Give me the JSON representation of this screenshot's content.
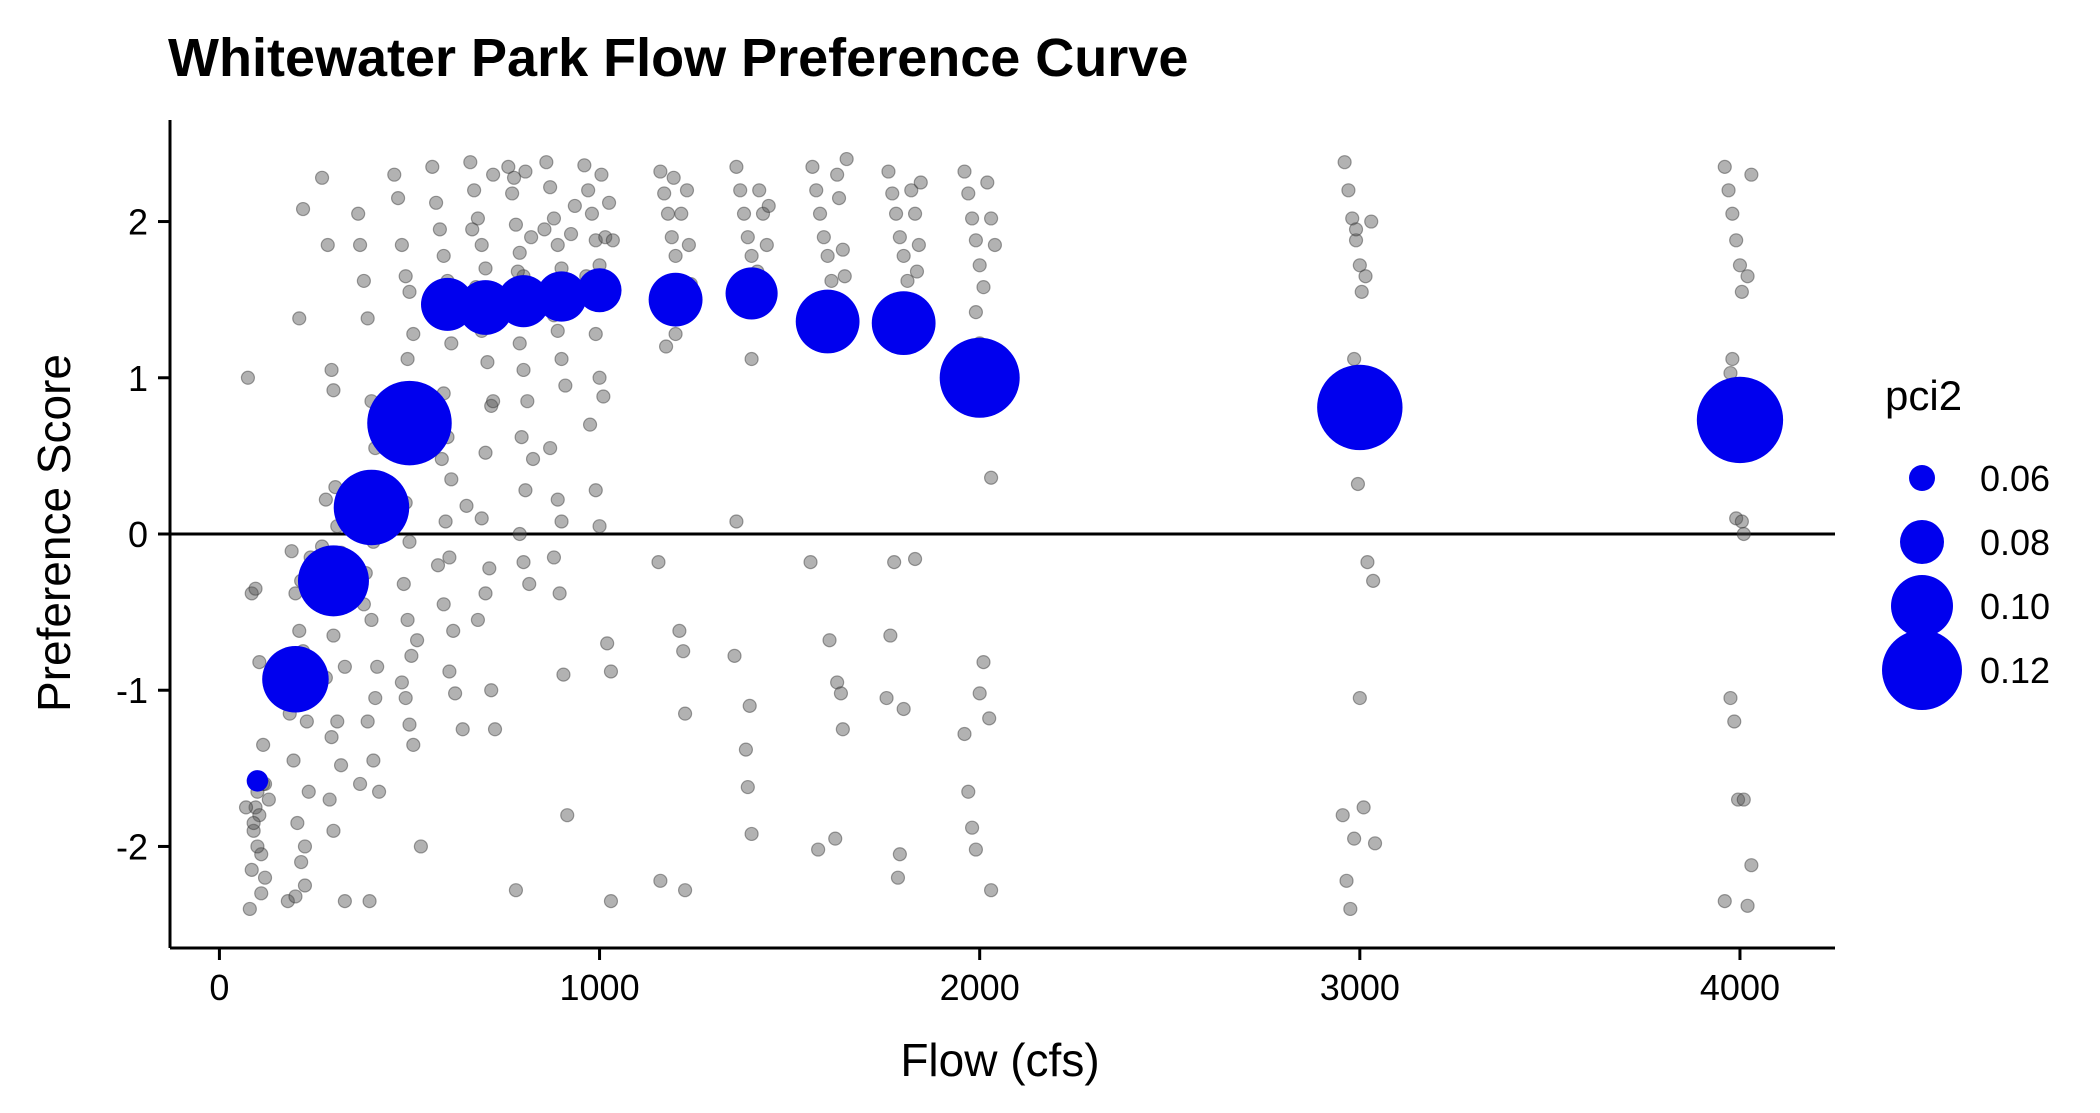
{
  "chart_data": {
    "type": "scatter",
    "title": "Whitewater Park Flow Preference Curve",
    "xlabel": "Flow (cfs)",
    "ylabel": "Preference Score",
    "xlim": [
      -130,
      4250
    ],
    "ylim": [
      -2.65,
      2.65
    ],
    "xticks": [
      0,
      1000,
      2000,
      3000,
      4000
    ],
    "yticks": [
      -2,
      -1,
      0,
      1,
      2
    ],
    "hline": 0,
    "grid": false,
    "colors": {
      "raw": "#555555",
      "mean": "#0000ee",
      "axis": "#000000"
    },
    "legend": {
      "title": "pci2",
      "placement": "right",
      "entries": [
        {
          "label": "0.06",
          "value": 0.06
        },
        {
          "label": "0.08",
          "value": 0.08
        },
        {
          "label": "0.10",
          "value": 0.1
        },
        {
          "label": "0.12",
          "value": 0.12
        }
      ]
    },
    "mean_points": [
      {
        "x": 100,
        "y": -1.58,
        "pci2": 0.055
      },
      {
        "x": 200,
        "y": -0.93,
        "pci2": 0.105
      },
      {
        "x": 300,
        "y": -0.3,
        "pci2": 0.11
      },
      {
        "x": 400,
        "y": 0.17,
        "pci2": 0.115
      },
      {
        "x": 500,
        "y": 0.71,
        "pci2": 0.125
      },
      {
        "x": 600,
        "y": 1.47,
        "pci2": 0.09
      },
      {
        "x": 700,
        "y": 1.45,
        "pci2": 0.092
      },
      {
        "x": 800,
        "y": 1.49,
        "pci2": 0.089
      },
      {
        "x": 900,
        "y": 1.52,
        "pci2": 0.087
      },
      {
        "x": 1000,
        "y": 1.56,
        "pci2": 0.08
      },
      {
        "x": 1200,
        "y": 1.5,
        "pci2": 0.091
      },
      {
        "x": 1400,
        "y": 1.54,
        "pci2": 0.089
      },
      {
        "x": 1600,
        "y": 1.36,
        "pci2": 0.102
      },
      {
        "x": 1800,
        "y": 1.35,
        "pci2": 0.102
      },
      {
        "x": 2000,
        "y": 1.0,
        "pci2": 0.12
      },
      {
        "x": 3000,
        "y": 0.81,
        "pci2": 0.126
      },
      {
        "x": 4000,
        "y": 0.73,
        "pci2": 0.127
      }
    ],
    "raw_points": [
      [
        75,
        1.0
      ],
      [
        80,
        -2.4
      ],
      [
        85,
        -2.15
      ],
      [
        90,
        -1.9
      ],
      [
        95,
        -1.75
      ],
      [
        100,
        -1.65
      ],
      [
        105,
        -1.8
      ],
      [
        110,
        -2.05
      ],
      [
        115,
        -1.6
      ],
      [
        85,
        -0.38
      ],
      [
        95,
        -0.35
      ],
      [
        105,
        -0.82
      ],
      [
        115,
        -1.35
      ],
      [
        120,
        -1.6
      ],
      [
        90,
        -1.85
      ],
      [
        100,
        -2.0
      ],
      [
        110,
        -2.3
      ],
      [
        120,
        -2.2
      ],
      [
        130,
        -1.7
      ],
      [
        70,
        -1.75
      ],
      [
        190,
        -0.11
      ],
      [
        200,
        -0.38
      ],
      [
        210,
        -0.62
      ],
      [
        220,
        -0.75
      ],
      [
        185,
        -1.15
      ],
      [
        195,
        -1.45
      ],
      [
        205,
        -1.85
      ],
      [
        215,
        -2.1
      ],
      [
        225,
        -2.25
      ],
      [
        235,
        -1.65
      ],
      [
        180,
        -2.35
      ],
      [
        210,
        1.38
      ],
      [
        220,
        2.08
      ],
      [
        205,
        -0.9
      ],
      [
        230,
        -1.2
      ],
      [
        240,
        -0.15
      ],
      [
        190,
        -0.78
      ],
      [
        200,
        -2.32
      ],
      [
        215,
        -0.3
      ],
      [
        225,
        -2.0
      ],
      [
        270,
        2.28
      ],
      [
        285,
        1.85
      ],
      [
        295,
        1.05
      ],
      [
        300,
        0.92
      ],
      [
        305,
        0.3
      ],
      [
        310,
        0.05
      ],
      [
        290,
        -0.32
      ],
      [
        320,
        -0.12
      ],
      [
        300,
        -0.65
      ],
      [
        280,
        -0.92
      ],
      [
        310,
        -1.2
      ],
      [
        320,
        -1.48
      ],
      [
        290,
        -1.7
      ],
      [
        300,
        -1.9
      ],
      [
        330,
        -2.35
      ],
      [
        340,
        0.18
      ],
      [
        280,
        0.22
      ],
      [
        270,
        -0.08
      ],
      [
        295,
        -1.3
      ],
      [
        330,
        -0.85
      ],
      [
        365,
        2.05
      ],
      [
        370,
        1.85
      ],
      [
        380,
        1.62
      ],
      [
        390,
        1.38
      ],
      [
        400,
        0.85
      ],
      [
        410,
        0.55
      ],
      [
        395,
        0.3
      ],
      [
        405,
        -0.05
      ],
      [
        385,
        -0.25
      ],
      [
        400,
        -0.55
      ],
      [
        415,
        -0.85
      ],
      [
        390,
        -1.2
      ],
      [
        405,
        -1.45
      ],
      [
        420,
        -1.65
      ],
      [
        395,
        -2.35
      ],
      [
        380,
        -0.45
      ],
      [
        410,
        -1.05
      ],
      [
        360,
        -0.2
      ],
      [
        425,
        0.12
      ],
      [
        370,
        -1.6
      ],
      [
        460,
        2.3
      ],
      [
        470,
        2.15
      ],
      [
        480,
        1.85
      ],
      [
        490,
        1.65
      ],
      [
        500,
        1.55
      ],
      [
        510,
        1.28
      ],
      [
        495,
        1.12
      ],
      [
        505,
        0.82
      ],
      [
        515,
        0.6
      ],
      [
        490,
        0.2
      ],
      [
        500,
        -0.05
      ],
      [
        485,
        -0.32
      ],
      [
        495,
        -0.55
      ],
      [
        505,
        -0.78
      ],
      [
        490,
        -1.05
      ],
      [
        500,
        -1.22
      ],
      [
        510,
        -1.35
      ],
      [
        480,
        -0.95
      ],
      [
        520,
        -0.68
      ],
      [
        530,
        -2.0
      ],
      [
        560,
        2.35
      ],
      [
        570,
        2.12
      ],
      [
        580,
        1.95
      ],
      [
        590,
        1.78
      ],
      [
        600,
        1.62
      ],
      [
        610,
        1.22
      ],
      [
        590,
        0.9
      ],
      [
        600,
        0.62
      ],
      [
        610,
        0.35
      ],
      [
        595,
        0.08
      ],
      [
        605,
        -0.15
      ],
      [
        590,
        -0.45
      ],
      [
        605,
        -0.88
      ],
      [
        640,
        -1.25
      ],
      [
        620,
        -1.02
      ],
      [
        575,
        -0.2
      ],
      [
        585,
        0.48
      ],
      [
        615,
        -0.62
      ],
      [
        630,
        1.4
      ],
      [
        650,
        0.18
      ],
      [
        660,
        2.38
      ],
      [
        670,
        2.2
      ],
      [
        680,
        2.02
      ],
      [
        690,
        1.85
      ],
      [
        700,
        1.7
      ],
      [
        710,
        1.55
      ],
      [
        690,
        1.3
      ],
      [
        705,
        1.1
      ],
      [
        715,
        0.82
      ],
      [
        700,
        0.52
      ],
      [
        690,
        0.1
      ],
      [
        710,
        -0.22
      ],
      [
        700,
        -0.38
      ],
      [
        715,
        -1.0
      ],
      [
        725,
        -1.25
      ],
      [
        680,
        -0.55
      ],
      [
        720,
        0.85
      ],
      [
        665,
        1.95
      ],
      [
        675,
        1.58
      ],
      [
        720,
        2.3
      ],
      [
        760,
        2.35
      ],
      [
        770,
        2.18
      ],
      [
        780,
        1.98
      ],
      [
        790,
        1.8
      ],
      [
        800,
        1.65
      ],
      [
        810,
        1.42
      ],
      [
        790,
        1.22
      ],
      [
        800,
        1.05
      ],
      [
        810,
        0.85
      ],
      [
        795,
        0.62
      ],
      [
        805,
        0.28
      ],
      [
        790,
        0.0
      ],
      [
        800,
        -0.18
      ],
      [
        815,
        -0.32
      ],
      [
        780,
        -2.28
      ],
      [
        820,
        1.9
      ],
      [
        775,
        2.28
      ],
      [
        805,
        2.32
      ],
      [
        825,
        0.48
      ],
      [
        785,
        1.68
      ],
      [
        860,
        2.38
      ],
      [
        870,
        2.22
      ],
      [
        880,
        2.02
      ],
      [
        890,
        1.85
      ],
      [
        900,
        1.7
      ],
      [
        910,
        1.55
      ],
      [
        890,
        1.3
      ],
      [
        900,
        1.12
      ],
      [
        910,
        0.95
      ],
      [
        890,
        0.22
      ],
      [
        900,
        0.08
      ],
      [
        880,
        -0.15
      ],
      [
        895,
        -0.38
      ],
      [
        905,
        -0.9
      ],
      [
        915,
        -1.8
      ],
      [
        870,
        0.55
      ],
      [
        925,
        1.92
      ],
      [
        855,
        1.95
      ],
      [
        935,
        2.1
      ],
      [
        880,
        1.4
      ],
      [
        960,
        2.36
      ],
      [
        970,
        2.2
      ],
      [
        980,
        2.05
      ],
      [
        990,
        1.88
      ],
      [
        1000,
        1.72
      ],
      [
        1010,
        1.48
      ],
      [
        990,
        1.28
      ],
      [
        1000,
        1.0
      ],
      [
        1010,
        0.88
      ],
      [
        990,
        0.28
      ],
      [
        1000,
        0.05
      ],
      [
        1020,
        -0.7
      ],
      [
        1030,
        -0.88
      ],
      [
        1030,
        -2.35
      ],
      [
        965,
        1.65
      ],
      [
        1015,
        1.9
      ],
      [
        1025,
        2.12
      ],
      [
        975,
        0.7
      ],
      [
        1005,
        2.3
      ],
      [
        1035,
        1.88
      ],
      [
        1160,
        2.32
      ],
      [
        1170,
        2.18
      ],
      [
        1180,
        2.05
      ],
      [
        1190,
        1.9
      ],
      [
        1200,
        1.78
      ],
      [
        1210,
        1.62
      ],
      [
        1190,
        1.45
      ],
      [
        1200,
        1.28
      ],
      [
        1155,
        -0.18
      ],
      [
        1160,
        -2.22
      ],
      [
        1210,
        -0.62
      ],
      [
        1220,
        -0.75
      ],
      [
        1225,
        -1.15
      ],
      [
        1225,
        -2.28
      ],
      [
        1230,
        2.2
      ],
      [
        1215,
        2.05
      ],
      [
        1235,
        1.85
      ],
      [
        1175,
        1.2
      ],
      [
        1195,
        2.28
      ],
      [
        1240,
        1.6
      ],
      [
        1360,
        2.35
      ],
      [
        1370,
        2.2
      ],
      [
        1380,
        2.05
      ],
      [
        1390,
        1.9
      ],
      [
        1400,
        1.78
      ],
      [
        1410,
        1.62
      ],
      [
        1390,
        1.42
      ],
      [
        1400,
        1.12
      ],
      [
        1360,
        0.08
      ],
      [
        1355,
        -0.78
      ],
      [
        1395,
        -1.1
      ],
      [
        1385,
        -1.38
      ],
      [
        1390,
        -1.62
      ],
      [
        1400,
        -1.92
      ],
      [
        1420,
        2.2
      ],
      [
        1430,
        2.05
      ],
      [
        1440,
        1.85
      ],
      [
        1415,
        1.68
      ],
      [
        1425,
        1.5
      ],
      [
        1445,
        2.1
      ],
      [
        1560,
        2.35
      ],
      [
        1570,
        2.2
      ],
      [
        1580,
        2.05
      ],
      [
        1590,
        1.9
      ],
      [
        1600,
        1.78
      ],
      [
        1610,
        1.62
      ],
      [
        1590,
        1.42
      ],
      [
        1600,
        1.22
      ],
      [
        1555,
        -0.18
      ],
      [
        1575,
        -2.02
      ],
      [
        1605,
        -0.68
      ],
      [
        1625,
        -0.95
      ],
      [
        1635,
        -1.02
      ],
      [
        1640,
        -1.25
      ],
      [
        1620,
        -1.95
      ],
      [
        1625,
        2.3
      ],
      [
        1630,
        2.15
      ],
      [
        1640,
        1.82
      ],
      [
        1645,
        1.65
      ],
      [
        1650,
        2.4
      ],
      [
        1760,
        2.32
      ],
      [
        1770,
        2.18
      ],
      [
        1780,
        2.05
      ],
      [
        1790,
        1.9
      ],
      [
        1800,
        1.78
      ],
      [
        1810,
        1.62
      ],
      [
        1790,
        1.45
      ],
      [
        1800,
        1.2
      ],
      [
        1755,
        -1.05
      ],
      [
        1765,
        -0.65
      ],
      [
        1775,
        -0.18
      ],
      [
        1785,
        -2.2
      ],
      [
        1790,
        -2.05
      ],
      [
        1800,
        -1.12
      ],
      [
        1830,
        -0.16
      ],
      [
        1820,
        2.2
      ],
      [
        1830,
        2.05
      ],
      [
        1840,
        1.85
      ],
      [
        1835,
        1.68
      ],
      [
        1845,
        2.25
      ],
      [
        1960,
        2.32
      ],
      [
        1970,
        2.18
      ],
      [
        1980,
        2.02
      ],
      [
        1990,
        1.88
      ],
      [
        2000,
        1.72
      ],
      [
        2010,
        1.58
      ],
      [
        1990,
        1.42
      ],
      [
        2000,
        1.22
      ],
      [
        1960,
        -1.28
      ],
      [
        1970,
        -1.65
      ],
      [
        1980,
        -1.88
      ],
      [
        1990,
        -2.02
      ],
      [
        2000,
        -1.02
      ],
      [
        2010,
        -0.82
      ],
      [
        2025,
        -1.18
      ],
      [
        2030,
        -2.28
      ],
      [
        2030,
        0.36
      ],
      [
        2020,
        2.25
      ],
      [
        2030,
        2.02
      ],
      [
        2040,
        1.85
      ],
      [
        2960,
        2.38
      ],
      [
        2970,
        2.2
      ],
      [
        2980,
        2.02
      ],
      [
        2990,
        1.88
      ],
      [
        3000,
        1.72
      ],
      [
        3005,
        1.55
      ],
      [
        2990,
        1.95
      ],
      [
        2985,
        1.12
      ],
      [
        2995,
        0.32
      ],
      [
        2955,
        -1.8
      ],
      [
        2965,
        -2.22
      ],
      [
        2975,
        -2.4
      ],
      [
        2985,
        -1.95
      ],
      [
        3010,
        -1.75
      ],
      [
        3020,
        -0.18
      ],
      [
        3035,
        -0.3
      ],
      [
        3040,
        -1.98
      ],
      [
        3000,
        -1.05
      ],
      [
        3015,
        1.65
      ],
      [
        3030,
        2.0
      ],
      [
        3960,
        2.35
      ],
      [
        3970,
        2.2
      ],
      [
        3980,
        2.05
      ],
      [
        3990,
        1.88
      ],
      [
        4000,
        1.72
      ],
      [
        4005,
        1.55
      ],
      [
        3980,
        1.12
      ],
      [
        3975,
        1.03
      ],
      [
        3990,
        0.1
      ],
      [
        4005,
        0.08
      ],
      [
        4010,
        0.0
      ],
      [
        3960,
        -2.35
      ],
      [
        3975,
        -1.05
      ],
      [
        3985,
        -1.2
      ],
      [
        3995,
        -1.7
      ],
      [
        4010,
        -1.7
      ],
      [
        4020,
        -2.38
      ],
      [
        4030,
        -2.12
      ],
      [
        4020,
        1.65
      ],
      [
        4030,
        2.3
      ]
    ]
  }
}
